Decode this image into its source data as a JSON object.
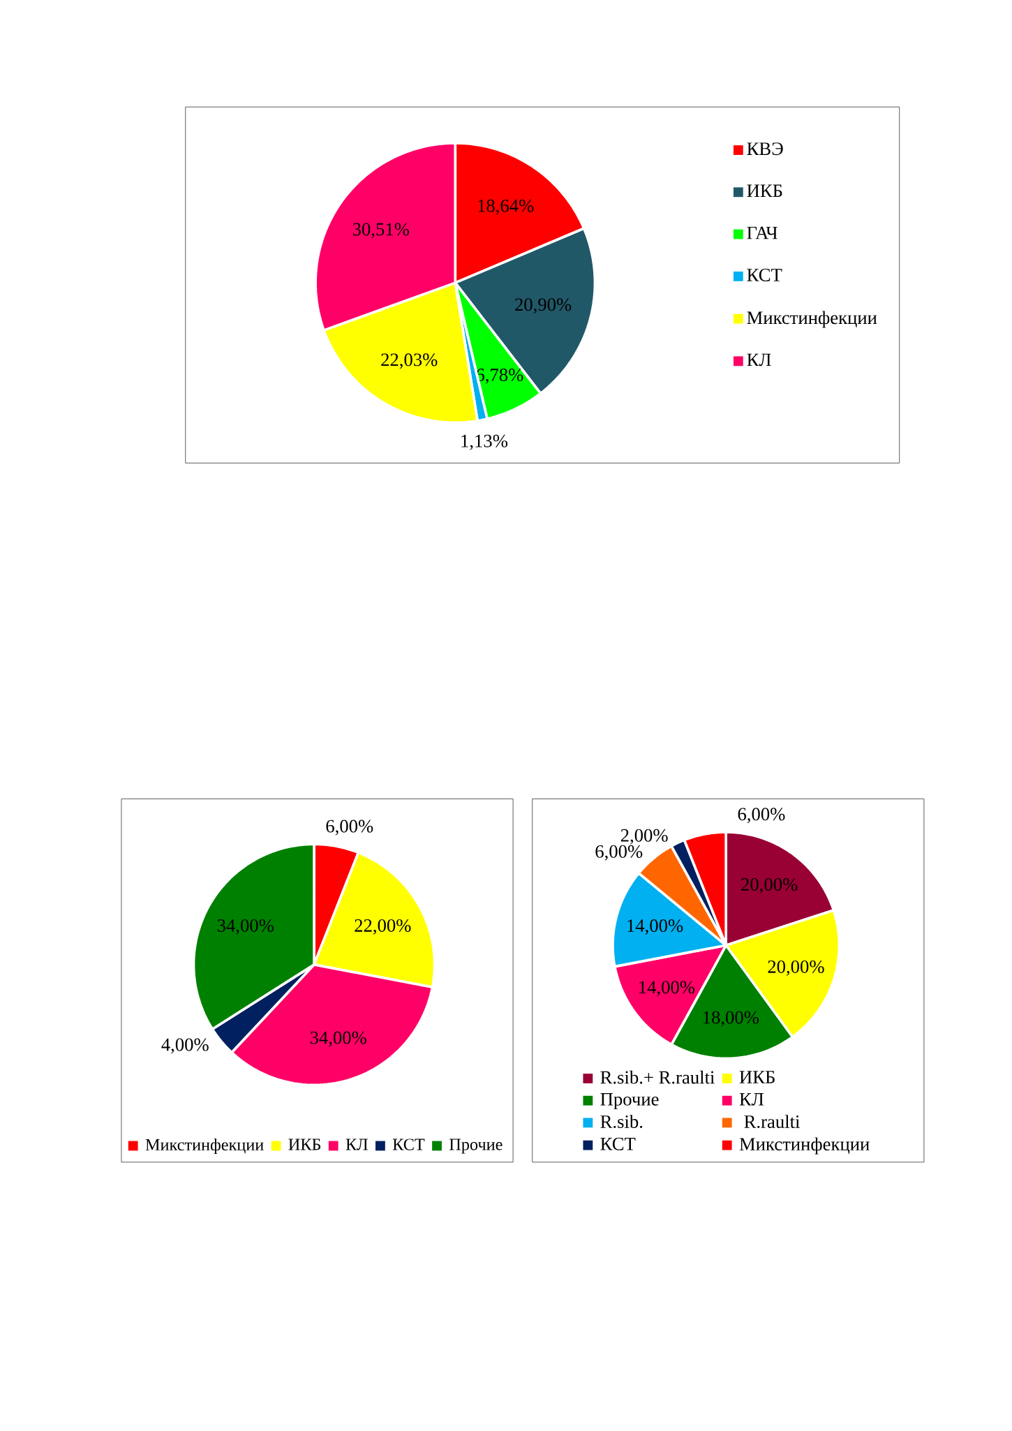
{
  "chart_data": [
    {
      "type": "pie",
      "categories": [
        "КВЭ",
        "ИКБ",
        "ГАЧ",
        "КСТ",
        "Микстинфекции",
        "КЛ"
      ],
      "values": [
        18.64,
        20.9,
        6.78,
        1.13,
        22.03,
        30.51
      ],
      "colors": [
        "#ff0000",
        "#215868",
        "#00ff00",
        "#00b0f0",
        "#ffff00",
        "#ff0066"
      ],
      "value_labels": [
        "18,64%",
        "20,90%",
        "6,78%",
        "1,13%",
        "22,03%",
        "30,51%"
      ],
      "legend": "right"
    },
    {
      "type": "pie",
      "categories": [
        "Микстинфекции",
        "ИКБ",
        "КЛ",
        "КСТ",
        "Прочие"
      ],
      "values": [
        6,
        22,
        34,
        4,
        34
      ],
      "colors": [
        "#ff0000",
        "#ffff00",
        "#ff0066",
        "#002060",
        "#008000"
      ],
      "value_labels": [
        "6,00%",
        "22,00%",
        "34,00%",
        "4,00%",
        "34,00%"
      ],
      "legend": "bottom"
    },
    {
      "type": "pie",
      "categories": [
        "R.sib.+ R.raulti",
        "ИКБ",
        "Прочие",
        "КЛ",
        "R.sib.",
        " R.raulti",
        "КСТ",
        "Микстинфекции"
      ],
      "values": [
        20,
        20,
        18,
        14,
        14,
        6,
        2,
        6
      ],
      "colors": [
        "#990033",
        "#ffff00",
        "#008000",
        "#ff0066",
        "#00b0f0",
        "#ff6600",
        "#002060",
        "#ff0000"
      ],
      "value_labels": [
        "20,00%",
        "20,00%",
        "18,00%",
        "14,00%",
        "14,00%",
        "6,00%",
        "2,00%",
        "6,00%"
      ],
      "legend": "bottom"
    }
  ]
}
